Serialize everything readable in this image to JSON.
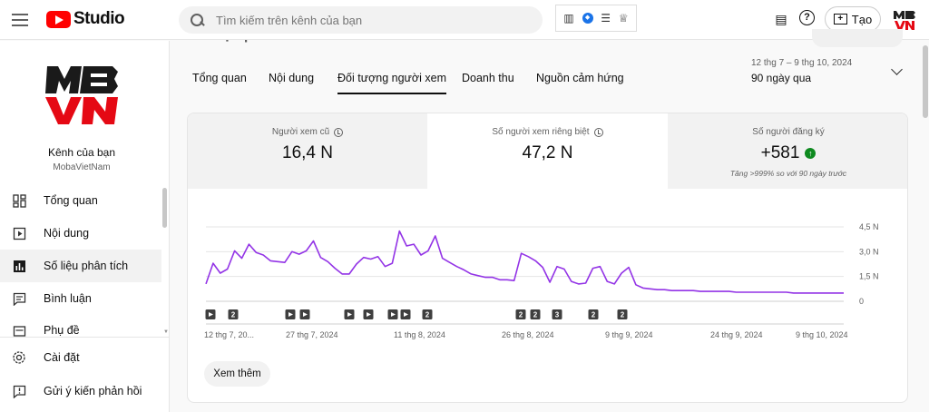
{
  "header": {
    "brand": "Studio",
    "search_placeholder": "Tìm kiếm trên kênh của bạn",
    "create_label": "Tạo",
    "colors": {
      "brand_red": "#ff0000"
    }
  },
  "sidebar": {
    "channel_name": "Kênh của bạn",
    "channel_handle": "MobaVietNam",
    "items": [
      {
        "label": "Tổng quan",
        "icon": "dashboard-icon"
      },
      {
        "label": "Nội dung",
        "icon": "content-icon"
      },
      {
        "label": "Số liệu phân tích",
        "icon": "analytics-icon",
        "active": true
      },
      {
        "label": "Bình luận",
        "icon": "comments-icon"
      },
      {
        "label": "Phụ đề",
        "icon": "subtitles-icon"
      },
      {
        "label": "Cài đặt",
        "icon": "settings-icon"
      },
      {
        "label": "Gửi ý kiến phản hồi",
        "icon": "feedback-icon"
      }
    ]
  },
  "main": {
    "title": "Số liệu phân tích về kênh",
    "tabs": [
      {
        "label": "Tổng quan"
      },
      {
        "label": "Nội dung"
      },
      {
        "label": "Đối tượng người xem",
        "active": true
      },
      {
        "label": "Doanh thu"
      },
      {
        "label": "Nguồn cảm hứng"
      }
    ],
    "date_range": {
      "dates": "12 thg 7 – 9 thg 10, 2024",
      "period": "90 ngày qua"
    },
    "metrics": [
      {
        "label": "Người xem cũ",
        "value": "16,4 N"
      },
      {
        "label": "Số người xem riêng biệt",
        "value": "47,2 N"
      },
      {
        "label": "Số người đăng ký",
        "value": "+581",
        "sub": "Tăng >999% so với 90 ngày trước"
      }
    ],
    "see_more_label": "Xem thêm"
  },
  "chart_data": {
    "type": "line",
    "y_tick_labels": [
      "4,5 N",
      "3,0 N",
      "1,5 N",
      "0"
    ],
    "ylim": [
      0,
      4500
    ],
    "x_tick_labels": [
      "12 thg 7, 20...",
      "27 thg 7, 2024",
      "11 thg 8, 2024",
      "26 thg 8, 2024",
      "9 thg 9, 2024",
      "24 thg 9, 2024",
      "9 thg 10, 2024"
    ],
    "series_color": "#9334e6",
    "values": [
      1050,
      2300,
      1700,
      1950,
      3050,
      2600,
      3450,
      2950,
      2800,
      2450,
      2400,
      2350,
      3000,
      2850,
      3050,
      3650,
      2650,
      2400,
      2000,
      1650,
      1650,
      2250,
      2650,
      2550,
      2700,
      2100,
      2300,
      4250,
      3350,
      3450,
      2800,
      3050,
      3950,
      2600,
      2350,
      2100,
      1900,
      1650,
      1550,
      1450,
      1450,
      1300,
      1300,
      1250,
      2900,
      2700,
      2450,
      2050,
      1150,
      2100,
      1950,
      1200,
      1050,
      1100,
      2000,
      2100,
      1200,
      1050,
      1700,
      2050,
      1000,
      800,
      750,
      700,
      700,
      650,
      650,
      650,
      650,
      600,
      600,
      600,
      600,
      600,
      550,
      550,
      550,
      550,
      550,
      550,
      550,
      550,
      500,
      500,
      500,
      500,
      500,
      500,
      500,
      500
    ],
    "event_markers": [
      {
        "kind": "play",
        "label": ""
      },
      {
        "kind": "count",
        "label": "2"
      },
      {
        "kind": "play",
        "label": ""
      },
      {
        "kind": "play",
        "label": ""
      },
      {
        "kind": "play",
        "label": ""
      },
      {
        "kind": "play",
        "label": ""
      },
      {
        "kind": "play",
        "label": ""
      },
      {
        "kind": "play",
        "label": ""
      },
      {
        "kind": "count",
        "label": "2"
      },
      {
        "kind": "count",
        "label": "2"
      },
      {
        "kind": "count",
        "label": "2"
      },
      {
        "kind": "count",
        "label": "3"
      },
      {
        "kind": "count",
        "label": "2"
      },
      {
        "kind": "count",
        "label": "2"
      }
    ]
  }
}
